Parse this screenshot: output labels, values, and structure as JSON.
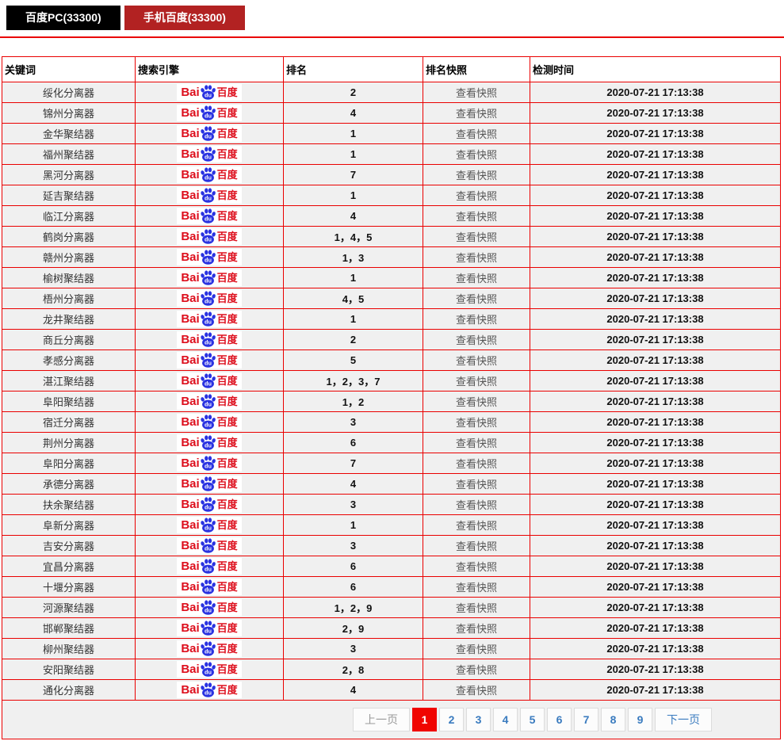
{
  "tabs": [
    {
      "label": "百度PC(33300)",
      "active": false
    },
    {
      "label": "手机百度(33300)",
      "active": true
    }
  ],
  "table": {
    "headers": [
      "关键词",
      "搜索引擎",
      "排名",
      "排名快照",
      "检测时间"
    ],
    "snapshot_label": "查看快照",
    "check_time": "2020-07-21 17:13:38",
    "engine_logo": {
      "latin": "Bai",
      "paw_text": "du",
      "cn": "百度"
    },
    "rows": [
      {
        "keyword": "绥化分离器",
        "rank": "2"
      },
      {
        "keyword": "锦州分离器",
        "rank": "4"
      },
      {
        "keyword": "金华聚结器",
        "rank": "1"
      },
      {
        "keyword": "福州聚结器",
        "rank": "1"
      },
      {
        "keyword": "黑河分离器",
        "rank": "7"
      },
      {
        "keyword": "延吉聚结器",
        "rank": "1"
      },
      {
        "keyword": "临江分离器",
        "rank": "4"
      },
      {
        "keyword": "鹤岗分离器",
        "rank": "1，4，5"
      },
      {
        "keyword": "赣州分离器",
        "rank": "1，3"
      },
      {
        "keyword": "榆树聚结器",
        "rank": "1"
      },
      {
        "keyword": "梧州分离器",
        "rank": "4，5"
      },
      {
        "keyword": "龙井聚结器",
        "rank": "1"
      },
      {
        "keyword": "商丘分离器",
        "rank": "2"
      },
      {
        "keyword": "孝感分离器",
        "rank": "5"
      },
      {
        "keyword": "湛江聚结器",
        "rank": "1，2，3，7"
      },
      {
        "keyword": "阜阳聚结器",
        "rank": "1，2"
      },
      {
        "keyword": "宿迁分离器",
        "rank": "3"
      },
      {
        "keyword": "荆州分离器",
        "rank": "6"
      },
      {
        "keyword": "阜阳分离器",
        "rank": "7"
      },
      {
        "keyword": "承德分离器",
        "rank": "4"
      },
      {
        "keyword": "扶余聚结器",
        "rank": "3"
      },
      {
        "keyword": "阜新分离器",
        "rank": "1"
      },
      {
        "keyword": "吉安分离器",
        "rank": "3"
      },
      {
        "keyword": "宜昌分离器",
        "rank": "6"
      },
      {
        "keyword": "十堰分离器",
        "rank": "6"
      },
      {
        "keyword": "河源聚结器",
        "rank": "1，2，9"
      },
      {
        "keyword": "邯郸聚结器",
        "rank": "2，9"
      },
      {
        "keyword": "柳州聚结器",
        "rank": "3"
      },
      {
        "keyword": "安阳聚结器",
        "rank": "2，8"
      },
      {
        "keyword": "通化分离器",
        "rank": "4"
      }
    ]
  },
  "pagination": {
    "prev_label": "上一页",
    "next_label": "下一页",
    "pages": [
      "1",
      "2",
      "3",
      "4",
      "5",
      "6",
      "7",
      "8",
      "9"
    ],
    "active_page": "1"
  },
  "colors": {
    "border_red": "#ea0000",
    "tab_black": "#000000",
    "tab_red": "#b22222",
    "active_page_red": "#f00500",
    "page_link_blue": "#3a7bbf",
    "logo_red": "#dd0f1d",
    "logo_blue": "#2932e1",
    "row_bg": "#f0f0f0"
  }
}
